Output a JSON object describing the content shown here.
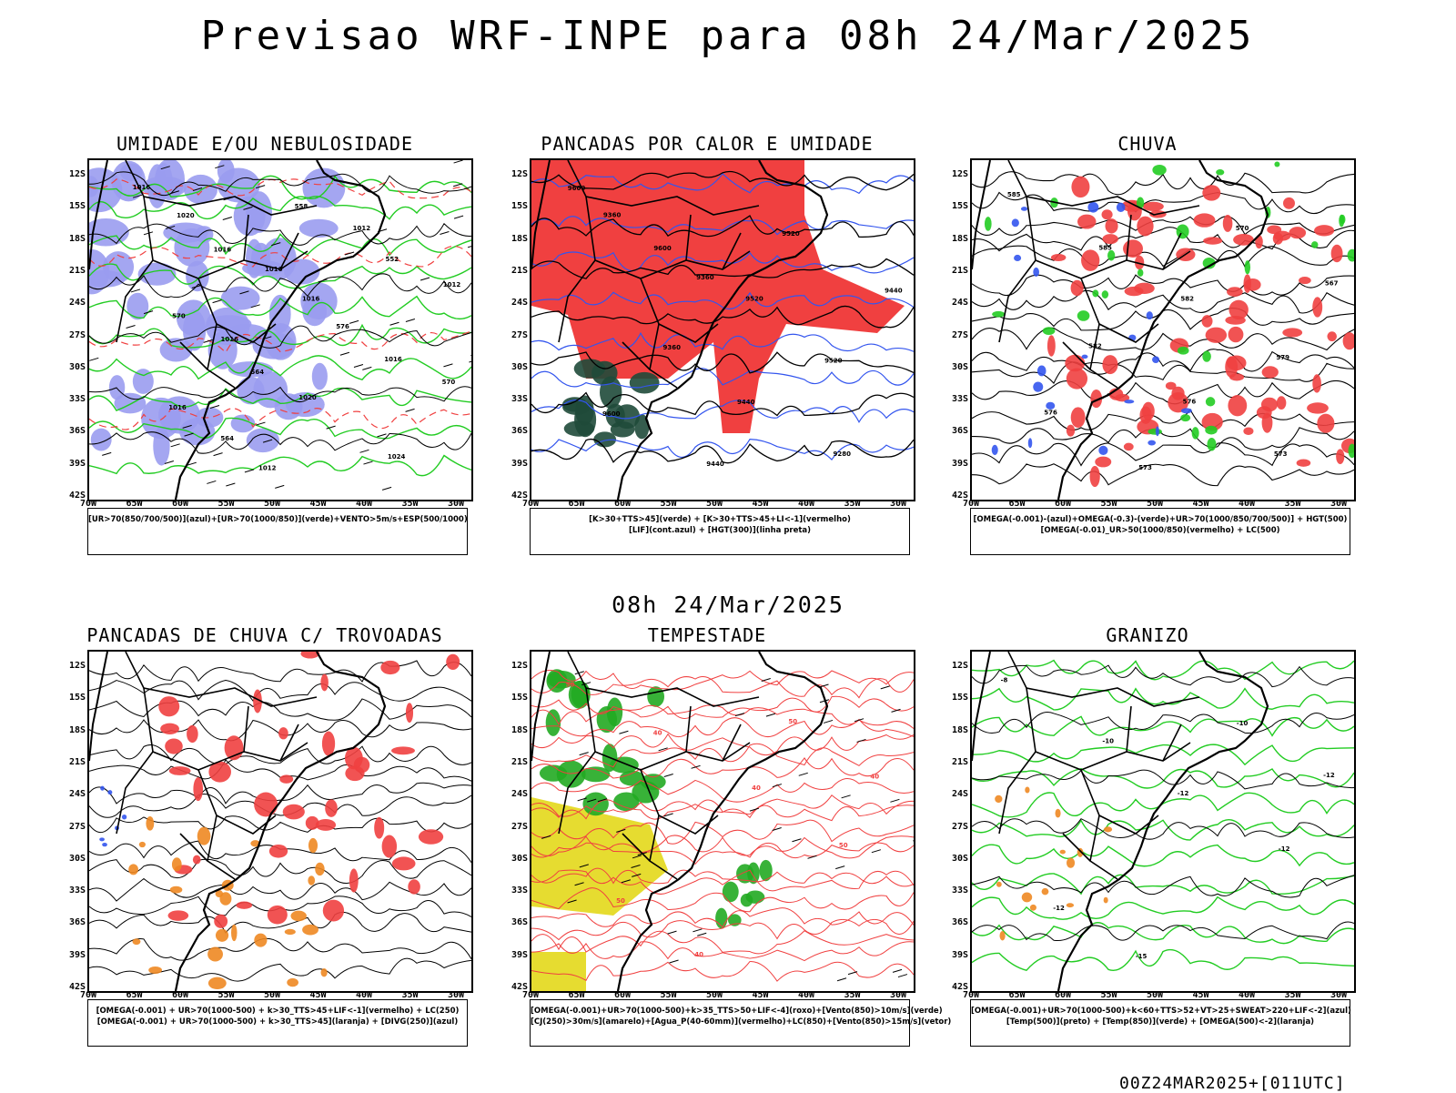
{
  "main_title": "Previsao WRF-INPE  para 08h 24/Mar/2025",
  "mid_date": "08h 24/Mar/2025",
  "footer_run": "00Z24MAR2025+[011UTC]",
  "lat_labels": [
    "12S",
    "15S",
    "18S",
    "21S",
    "24S",
    "27S",
    "30S",
    "33S",
    "36S",
    "39S",
    "42S"
  ],
  "lon_labels": [
    "70W",
    "65W",
    "60W",
    "55W",
    "50W",
    "45W",
    "40W",
    "35W",
    "30W"
  ],
  "colors": {
    "humidity_blue": "#9a9cf0",
    "humidity_green": "#22cc22",
    "convective_red": "#f04040",
    "dark_green": "#1f4a3a",
    "contour_blue": "#3355ee",
    "storm_yellow": "#e6dc30",
    "hail_orange": "#ee8822"
  },
  "panels": [
    {
      "title": "UMIDADE E/OU NEBULOSIDADE",
      "legend": [
        "[UR>70(850/700/500)](azul)+[UR>70(1000/850)](verde)+VENTO>5m/s+ESP(500/1000)"
      ],
      "contour_labels": [
        "1016",
        "1016",
        "1016",
        "1016",
        "1016",
        "1012",
        "1012",
        "1012",
        "1016",
        "1020",
        "1024",
        "1020",
        "1016",
        "576",
        "570",
        "564",
        "558",
        "552",
        "570",
        "564"
      ]
    },
    {
      "title": "PANCADAS POR CALOR E UMIDADE",
      "legend": [
        "[K>30+TTS>45](verde)  +  [K>30+TTS>45+LI<-1](vermelho)",
        "[LIF](cont.azul)  +  [HGT(300)](linha preta)"
      ],
      "contour_labels": [
        "9600",
        "9600",
        "9520",
        "9520",
        "9600",
        "9440",
        "9520",
        "9440",
        "9360",
        "9440",
        "9280",
        "9360",
        "9360"
      ]
    },
    {
      "title": "CHUVA",
      "legend": [
        "[OMEGA(-0.001)-(azul)+OMEGA(-0.3)-(verde)+UR>70(1000/850/700/500)]  +  HGT(500)",
        "[OMEGA(-0.01)_UR>50(1000/850)(vermelho)  +  LC(500)"
      ],
      "contour_labels": [
        "585",
        "585",
        "582",
        "579",
        "576",
        "573",
        "570",
        "567",
        "582",
        "576",
        "573"
      ]
    },
    {
      "title": "PANCADAS DE CHUVA C/ TROVOADAS",
      "legend": [
        "[OMEGA(-0.001)  +  UR>70(1000-500)  +  k>30_TTS>45+LIF<-1](vermelho)  +  LC(250)",
        "[OMEGA(-0.001)  +  UR>70(1000-500)  +  k>30_TTS>45](laranja)  +  [DIVG(250)](azul)"
      ],
      "contour_labels": []
    },
    {
      "title": "TEMPESTADE",
      "legend": [
        "[OMEGA(-0.001)+UR>70(1000-500)+k>35_TTS>50+LIF<-4](roxo)+[Vento(850)>10m/s](verde)",
        "[CJ(250)>30m/s](amarelo)+[Agua_P(40-60mm)](vermelho)+LC(850)+[Vento(850)>15m/s](vetor)"
      ],
      "contour_labels": [
        "50",
        "40",
        "40",
        "50",
        "50",
        "40",
        "50",
        "40"
      ]
    },
    {
      "title": "GRANIZO",
      "legend": [
        "[OMEGA(-0.001)+UR>70(1000-500)+k<60+TTS>52+VT>25+SWEAT>220+LIF<-2](azul)",
        "[Temp(500)](preto)  +  [Temp(850)](verde)  +  [OMEGA(500)<-2](laranja)"
      ],
      "contour_labels": [
        "-8",
        "-10",
        "-12",
        "-12",
        "-12",
        "-15",
        "-10",
        "-12"
      ]
    }
  ]
}
